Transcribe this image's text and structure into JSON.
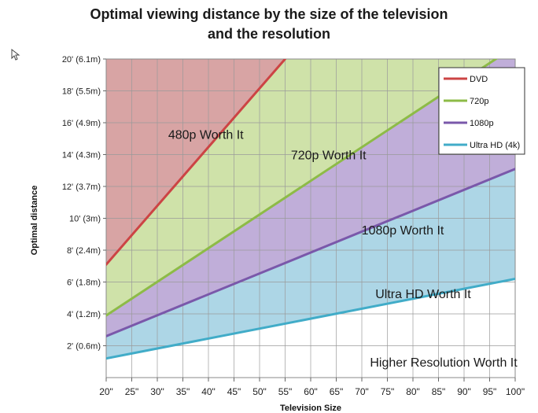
{
  "chart_data": {
    "type": "area",
    "title_line1": "Optimal viewing distance by the size of the television",
    "title_line2": "and the resolution",
    "xlabel": "Television Size",
    "ylabel": "Optimal distance",
    "xlim": [
      20,
      100
    ],
    "ylim": [
      0,
      20
    ],
    "x_ticks": [
      {
        "value": 20,
        "label": "20\""
      },
      {
        "value": 25,
        "label": "25\""
      },
      {
        "value": 30,
        "label": "30\""
      },
      {
        "value": 35,
        "label": "35\""
      },
      {
        "value": 40,
        "label": "40\""
      },
      {
        "value": 45,
        "label": "45\""
      },
      {
        "value": 50,
        "label": "50\""
      },
      {
        "value": 55,
        "label": "55\""
      },
      {
        "value": 60,
        "label": "60\""
      },
      {
        "value": 65,
        "label": "65\""
      },
      {
        "value": 70,
        "label": "70\""
      },
      {
        "value": 75,
        "label": "75\""
      },
      {
        "value": 80,
        "label": "80\""
      },
      {
        "value": 85,
        "label": "85\""
      },
      {
        "value": 90,
        "label": "90\""
      },
      {
        "value": 95,
        "label": "95\""
      },
      {
        "value": 100,
        "label": "100\""
      }
    ],
    "y_ticks": [
      {
        "value": 2,
        "label": "2' (0.6m)"
      },
      {
        "value": 4,
        "label": "4' (1.2m)"
      },
      {
        "value": 6,
        "label": "6' (1.8m)"
      },
      {
        "value": 8,
        "label": "8' (2.4m)"
      },
      {
        "value": 10,
        "label": "10' (3m)"
      },
      {
        "value": 12,
        "label": "12' (3.7m)"
      },
      {
        "value": 14,
        "label": "14' (4.3m)"
      },
      {
        "value": 16,
        "label": "16' (4.9m)"
      },
      {
        "value": 18,
        "label": "18' (5.5m)"
      },
      {
        "value": 20,
        "label": "20' (6.1m)"
      }
    ],
    "series": [
      {
        "name": "DVD",
        "color": "#cc4444",
        "x": [
          20,
          55
        ],
        "y": [
          7.1,
          20.0
        ]
      },
      {
        "name": "720p",
        "color": "#8dbb47",
        "x": [
          20,
          100
        ],
        "y": [
          3.9,
          20.8
        ]
      },
      {
        "name": "1080p",
        "color": "#7a58aa",
        "x": [
          20,
          100
        ],
        "y": [
          2.6,
          13.1
        ]
      },
      {
        "name": "Ultra HD (4k)",
        "color": "#41acc8",
        "x": [
          20,
          100
        ],
        "y": [
          1.2,
          6.2
        ]
      }
    ],
    "regions": [
      {
        "label": "480p Worth It",
        "color": "#d8a4a4",
        "label_at": [
          39.5,
          15.0
        ]
      },
      {
        "label": "720p Worth It",
        "color": "#cfe2a9",
        "label_at": [
          63.5,
          13.7
        ]
      },
      {
        "label": "1080p Worth It",
        "color": "#c0aed9",
        "label_at": [
          78.0,
          9.0
        ]
      },
      {
        "label": "Ultra HD Worth It",
        "color": "#add6e6",
        "label_at": [
          82.0,
          5.0
        ]
      },
      {
        "label": "Higher Resolution Worth It",
        "color": "#ffffff",
        "label_at": [
          86.0,
          0.7
        ]
      }
    ],
    "legend_position": "top-right"
  }
}
